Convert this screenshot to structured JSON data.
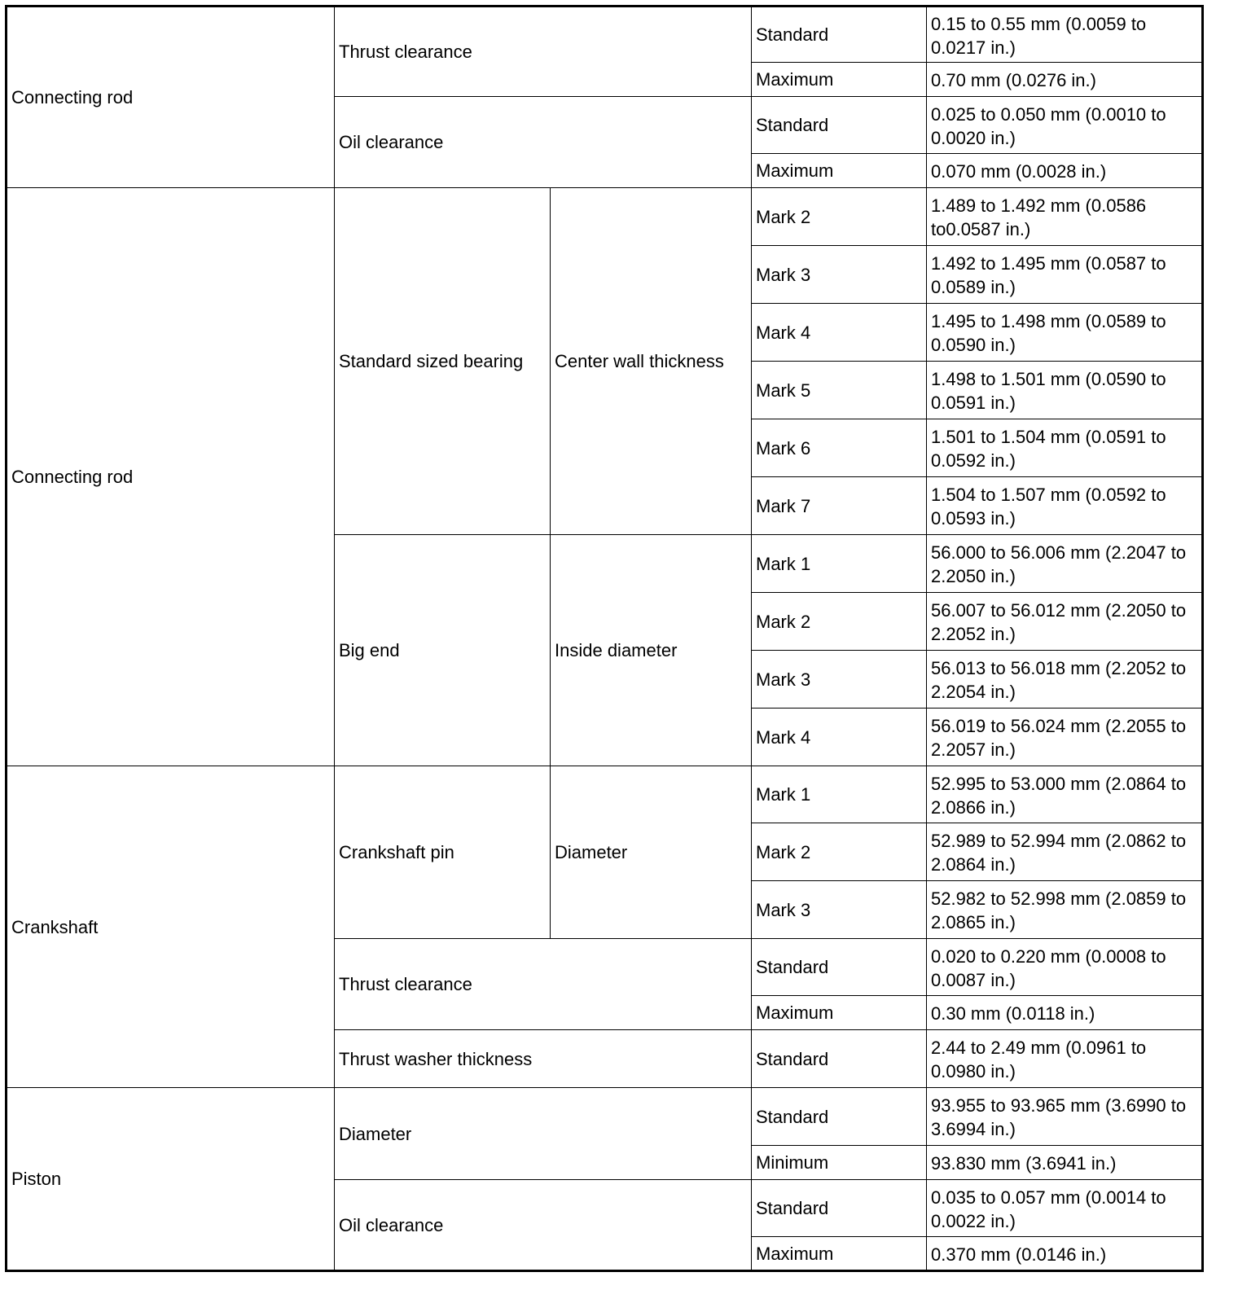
{
  "sections": [
    {
      "component": "Connecting rod",
      "items": [
        {
          "name": "Thrust clearance",
          "sub": "",
          "specs": [
            {
              "condition": "Standard",
              "value": "0.15 to 0.55 mm (0.0059 to 0.0217 in.)"
            },
            {
              "condition": "Maximum",
              "value": "0.70 mm (0.0276 in.)"
            }
          ]
        },
        {
          "name": "Oil clearance",
          "sub": "",
          "specs": [
            {
              "condition": "Standard",
              "value": "0.025 to 0.050 mm (0.0010 to 0.0020 in.)"
            },
            {
              "condition": "Maximum",
              "value": "0.070 mm (0.0028 in.)"
            }
          ]
        }
      ]
    },
    {
      "component": "Connecting rod",
      "items": [
        {
          "name": "Standard sized bearing",
          "sub": "Center wall thickness",
          "specs": [
            {
              "condition": "Mark 2",
              "value": "1.489 to 1.492 mm (0.0586 to0.0587 in.)"
            },
            {
              "condition": "Mark 3",
              "value": "1.492 to 1.495 mm (0.0587 to 0.0589 in.)"
            },
            {
              "condition": "Mark 4",
              "value": "1.495 to 1.498 mm (0.0589 to 0.0590 in.)"
            },
            {
              "condition": "Mark 5",
              "value": "1.498 to 1.501 mm (0.0590 to 0.0591 in.)"
            },
            {
              "condition": "Mark 6",
              "value": "1.501 to 1.504 mm (0.0591 to 0.0592 in.)"
            },
            {
              "condition": "Mark 7",
              "value": "1.504 to 1.507 mm (0.0592 to 0.0593 in.)"
            }
          ]
        },
        {
          "name": "Big end",
          "sub": "Inside diameter",
          "specs": [
            {
              "condition": "Mark 1",
              "value": "56.000 to 56.006 mm (2.2047 to 2.2050 in.)"
            },
            {
              "condition": "Mark 2",
              "value": "56.007 to 56.012 mm (2.2050 to 2.2052 in.)"
            },
            {
              "condition": "Mark 3",
              "value": "56.013 to 56.018 mm (2.2052 to 2.2054 in.)"
            },
            {
              "condition": "Mark 4",
              "value": "56.019 to 56.024 mm (2.2055 to 2.2057 in.)"
            }
          ]
        }
      ]
    },
    {
      "component": "Crankshaft",
      "items": [
        {
          "name": "Crankshaft pin",
          "sub": "Diameter",
          "specs": [
            {
              "condition": "Mark 1",
              "value": "52.995 to 53.000 mm (2.0864 to 2.0866 in.)"
            },
            {
              "condition": "Mark 2",
              "value": "52.989 to 52.994 mm (2.0862 to 2.0864 in.)"
            },
            {
              "condition": "Mark 3",
              "value": "52.982 to 52.998 mm (2.0859 to 2.0865 in.)"
            }
          ]
        },
        {
          "name": "Thrust clearance",
          "sub": "",
          "specs": [
            {
              "condition": "Standard",
              "value": "0.020 to 0.220 mm (0.0008 to 0.0087 in.)"
            },
            {
              "condition": "Maximum",
              "value": "0.30 mm (0.0118 in.)"
            }
          ]
        },
        {
          "name": "Thrust washer thickness",
          "sub": "",
          "specs": [
            {
              "condition": "Standard",
              "value": "2.44 to 2.49 mm (0.0961 to 0.0980 in.)"
            }
          ]
        }
      ]
    },
    {
      "component": "Piston",
      "items": [
        {
          "name": "Diameter",
          "sub": "",
          "specs": [
            {
              "condition": "Standard",
              "value": "93.955 to 93.965 mm (3.6990 to 3.6994 in.)"
            },
            {
              "condition": "Minimum",
              "value": "93.830 mm (3.6941 in.)"
            }
          ]
        },
        {
          "name": "Oil clearance",
          "sub": "",
          "specs": [
            {
              "condition": "Standard",
              "value": "0.035 to 0.057 mm (0.0014 to 0.0022 in.)"
            },
            {
              "condition": "Maximum",
              "value": "0.370 mm (0.0146 in.)"
            }
          ]
        }
      ]
    }
  ]
}
